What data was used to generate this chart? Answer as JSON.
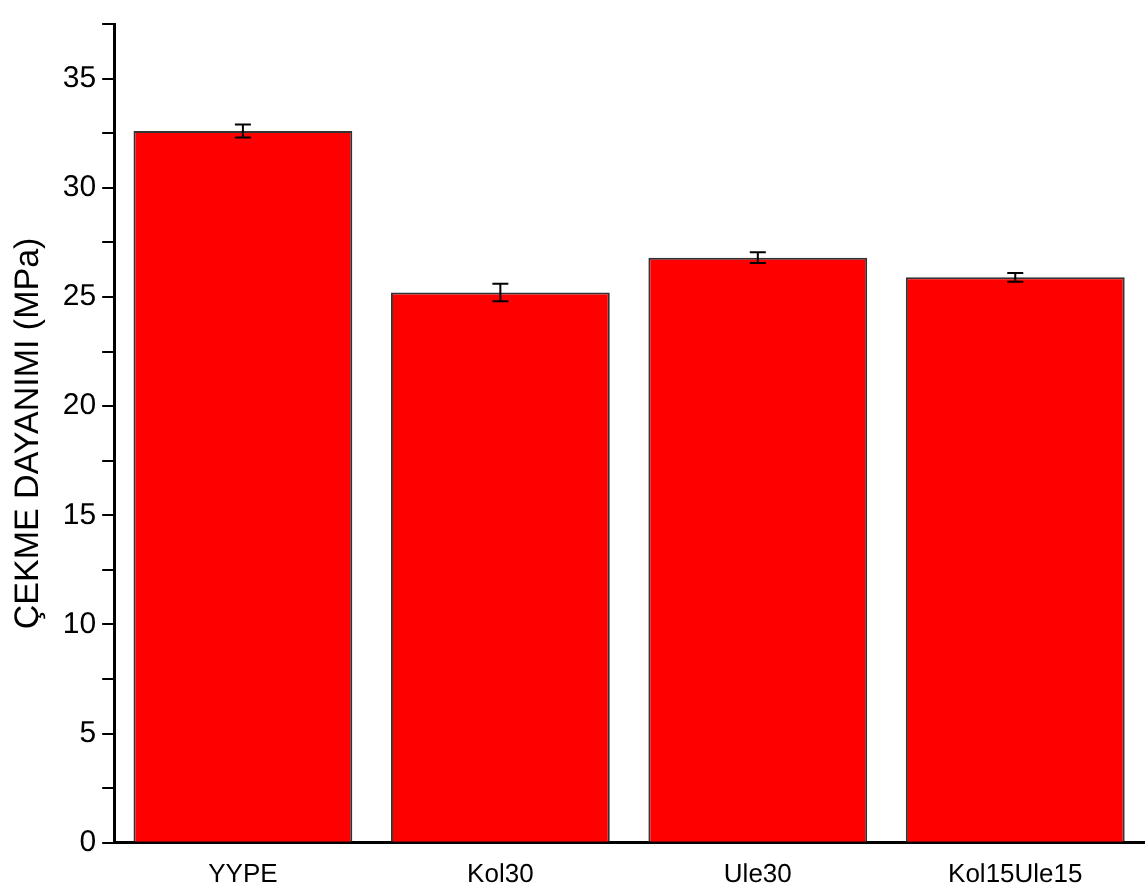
{
  "chart_data": {
    "type": "bar",
    "ylabel": "ÇEKME DAYANIMI (MPa)",
    "categories": [
      "YYPE",
      "Kol30",
      "Ule30",
      "Kol15Ule15"
    ],
    "values": [
      32.6,
      25.2,
      26.8,
      25.9
    ],
    "errors": [
      0.3,
      0.4,
      0.25,
      0.2
    ],
    "color": "#ff0000",
    "ylim": [
      0,
      37.5
    ],
    "yticks": [
      0,
      {
        "value": 2.5,
        "label": null
      },
      5,
      {
        "value": 7.5,
        "label": null
      },
      10,
      {
        "value": 12.5,
        "label": null
      },
      15,
      {
        "value": 17.5,
        "label": null
      },
      20,
      {
        "value": 22.5,
        "label": null
      },
      25,
      {
        "value": 27.5,
        "label": null
      },
      30,
      {
        "value": 32.5,
        "label": null
      },
      35,
      {
        "value": 37.5,
        "label": null
      }
    ],
    "grid": false,
    "legend": false
  }
}
